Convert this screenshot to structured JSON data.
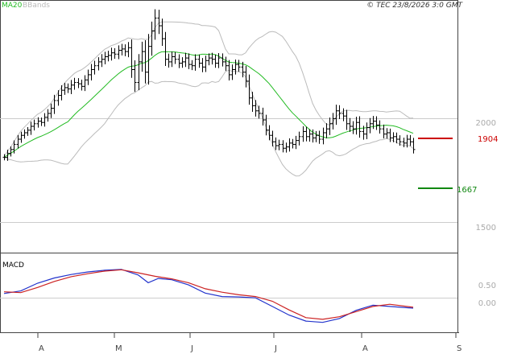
{
  "header": {
    "legend_ma": "MA20",
    "legend_bb": "BBands",
    "credit": "© TEC 23/8/2026 3:0 GMT"
  },
  "colors": {
    "background": "#ffffff",
    "frame": "#444444",
    "price_bars": "#000000",
    "ma20": "#22bb22",
    "bbands": "#bbbbbb",
    "resistance": "#cc0000",
    "support": "#118811",
    "macd_line": "#2233cc",
    "signal_line": "#cc2222",
    "gridline": "#cccccc"
  },
  "chart_data": [
    {
      "type": "ohlc",
      "panel": "price",
      "y_ticks": [
        "2000",
        "1500"
      ],
      "ylim": [
        1450,
        2430
      ],
      "x_labels": [
        "A",
        "M",
        "J",
        "J",
        "A",
        "S"
      ],
      "levels": [
        {
          "label": "1904",
          "value": 1904,
          "color": "#cc0000"
        },
        {
          "label": "1667",
          "value": 1667,
          "color": "#118811"
        }
      ],
      "close": [
        1820,
        1835,
        1850,
        1870,
        1890,
        1905,
        1915,
        1925,
        1940,
        1950,
        1960,
        1955,
        1975,
        1990,
        2010,
        2040,
        2060,
        2080,
        2090,
        2085,
        2100,
        2110,
        2105,
        2095,
        2120,
        2140,
        2160,
        2175,
        2190,
        2200,
        2210,
        2215,
        2225,
        2220,
        2235,
        2240,
        2230,
        2245,
        2160,
        2110,
        2190,
        2230,
        2150,
        2250,
        2310,
        2360,
        2330,
        2280,
        2200,
        2190,
        2210,
        2200,
        2185,
        2190,
        2205,
        2180,
        2175,
        2200,
        2185,
        2170,
        2195,
        2205,
        2200,
        2185,
        2205,
        2190,
        2175,
        2140,
        2160,
        2180,
        2170,
        2150,
        2115,
        2050,
        2020,
        2000,
        1990,
        1965,
        1925,
        1905,
        1880,
        1865,
        1870,
        1855,
        1860,
        1875,
        1870,
        1885,
        1900,
        1920,
        1900,
        1910,
        1895,
        1905,
        1890,
        1915,
        1930,
        1950,
        1970,
        2000,
        1990,
        1980,
        1950,
        1940,
        1930,
        1955,
        1920,
        1910,
        1935,
        1950,
        1960,
        1945,
        1930,
        1910,
        1915,
        1895,
        1900,
        1890,
        1880,
        1875,
        1890,
        1880,
        1850
      ],
      "range": [
        30,
        35,
        30,
        38,
        40,
        35,
        32,
        30,
        45,
        40,
        38,
        35,
        40,
        42,
        45,
        55,
        50,
        48,
        45,
        40,
        50,
        45,
        42,
        40,
        45,
        50,
        55,
        48,
        45,
        50,
        48,
        45,
        50,
        45,
        48,
        50,
        45,
        55,
        80,
        90,
        75,
        95,
        110,
        120,
        90,
        85,
        80,
        70,
        65,
        55,
        50,
        45,
        48,
        45,
        50,
        45,
        42,
        48,
        45,
        50,
        48,
        45,
        50,
        45,
        48,
        45,
        50,
        55,
        50,
        48,
        45,
        50,
        60,
        65,
        60,
        55,
        50,
        55,
        50,
        48,
        45,
        42,
        45,
        40,
        42,
        45,
        40,
        45,
        48,
        50,
        45,
        48,
        45,
        42,
        45,
        50,
        55,
        60,
        55,
        60,
        55,
        50,
        60,
        55,
        50,
        55,
        60,
        55,
        50,
        55,
        50,
        48,
        45,
        42,
        45,
        40,
        42,
        40,
        38,
        40,
        42,
        40,
        38
      ]
    },
    {
      "type": "line",
      "panel": "macd",
      "title": "MACD",
      "y_ticks": [
        "0.50",
        "0.00"
      ],
      "ylim": [
        -0.78,
        1.05
      ],
      "series": [
        {
          "key": "macd",
          "color": "#2233cc",
          "x": [
            0,
            5,
            10,
            15,
            20,
            25,
            30,
            35,
            40,
            43,
            46,
            50,
            55,
            60,
            65,
            70,
            75,
            80,
            85,
            90,
            95,
            100,
            105,
            110,
            115,
            122
          ],
          "values": [
            0.12,
            0.18,
            0.36,
            0.48,
            0.56,
            0.62,
            0.66,
            0.68,
            0.55,
            0.37,
            0.47,
            0.44,
            0.32,
            0.13,
            0.05,
            0.04,
            0.02,
            -0.18,
            -0.38,
            -0.52,
            -0.55,
            -0.46,
            -0.27,
            -0.15,
            -0.18,
            -0.22
          ]
        },
        {
          "key": "signal",
          "color": "#cc2222",
          "x": [
            0,
            5,
            10,
            15,
            20,
            25,
            30,
            35,
            40,
            45,
            50,
            55,
            60,
            65,
            70,
            75,
            80,
            85,
            90,
            95,
            100,
            105,
            110,
            115,
            122
          ],
          "values": [
            0.16,
            0.14,
            0.26,
            0.4,
            0.51,
            0.58,
            0.64,
            0.67,
            0.6,
            0.52,
            0.46,
            0.37,
            0.23,
            0.15,
            0.09,
            0.05,
            -0.06,
            -0.26,
            -0.44,
            -0.48,
            -0.42,
            -0.3,
            -0.18,
            -0.13,
            -0.2
          ]
        }
      ]
    }
  ]
}
